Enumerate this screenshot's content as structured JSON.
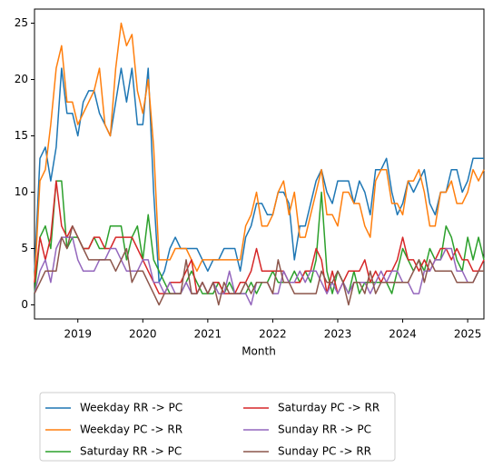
{
  "chart_data": {
    "type": "line",
    "xlabel": "Month",
    "x": [
      2018.333,
      2018.417,
      2018.5,
      2018.583,
      2018.667,
      2018.75,
      2018.833,
      2018.917,
      2019.0,
      2019.083,
      2019.167,
      2019.25,
      2019.333,
      2019.417,
      2019.5,
      2019.583,
      2019.667,
      2019.75,
      2019.833,
      2019.917,
      2020.0,
      2020.083,
      2020.167,
      2020.25,
      2020.333,
      2020.417,
      2020.5,
      2020.583,
      2020.667,
      2020.75,
      2020.833,
      2020.917,
      2021.0,
      2021.083,
      2021.167,
      2021.25,
      2021.333,
      2021.417,
      2021.5,
      2021.583,
      2021.667,
      2021.75,
      2021.833,
      2021.917,
      2022.0,
      2022.083,
      2022.167,
      2022.25,
      2022.333,
      2022.417,
      2022.5,
      2022.583,
      2022.667,
      2022.75,
      2022.833,
      2022.917,
      2023.0,
      2023.083,
      2023.167,
      2023.25,
      2023.333,
      2023.417,
      2023.5,
      2023.583,
      2023.667,
      2023.75,
      2023.833,
      2023.917,
      2024.0,
      2024.083,
      2024.167,
      2024.25,
      2024.333,
      2024.417,
      2024.5,
      2024.583,
      2024.667,
      2024.75,
      2024.833,
      2024.917,
      2025.0,
      2025.083,
      2025.167,
      2025.25
    ],
    "xlim": [
      2018.333,
      2025.25
    ],
    "xticks": [
      2019,
      2020,
      2021,
      2022,
      2023,
      2024,
      2025
    ],
    "ylim": [
      -1.25,
      26.25
    ],
    "yticks": [
      0,
      5,
      10,
      15,
      20,
      25
    ],
    "legend": "below",
    "series": [
      {
        "name": "Weekday RR -> PC",
        "color": "#1f77b4",
        "values": [
          3,
          13,
          14,
          11,
          14,
          21,
          17,
          17,
          15,
          18,
          19,
          19,
          17,
          16,
          15,
          18,
          21,
          18,
          21,
          16,
          16,
          21,
          10,
          2,
          3,
          5,
          6,
          5,
          5,
          5,
          5,
          4,
          3,
          4,
          4,
          5,
          5,
          5,
          3,
          6,
          7,
          9,
          9,
          8,
          8,
          10,
          10,
          9,
          4,
          7,
          7,
          9,
          11,
          12,
          10,
          9,
          11,
          11,
          11,
          9,
          11,
          10,
          8,
          12,
          12,
          13,
          10,
          8,
          9,
          11,
          10,
          11,
          12,
          9,
          8,
          10,
          10,
          12,
          12,
          10,
          11,
          13,
          13,
          13
        ]
      },
      {
        "name": "Weekday PC -> RR",
        "color": "#ff7f0e",
        "values": [
          2,
          11,
          12,
          16,
          21,
          23,
          18,
          18,
          16,
          17,
          18,
          19,
          21,
          16,
          15,
          21,
          25,
          23,
          24,
          19,
          17,
          20,
          14,
          4,
          4,
          4,
          5,
          5,
          5,
          4,
          3,
          4,
          4,
          4,
          4,
          4,
          4,
          4,
          4,
          7,
          8,
          10,
          7,
          7,
          8,
          10,
          11,
          8,
          10,
          6,
          6,
          8,
          10,
          12,
          8,
          8,
          7,
          10,
          10,
          9,
          9,
          7,
          6,
          11,
          12,
          12,
          9,
          9,
          8,
          11,
          11,
          12,
          10,
          7,
          7,
          10,
          10,
          11,
          9,
          9,
          10,
          12,
          11,
          12
        ]
      },
      {
        "name": "Saturday RR -> PC",
        "color": "#2ca02c",
        "values": [
          1,
          6,
          7,
          5,
          11,
          11,
          5,
          6,
          6,
          5,
          5,
          6,
          5,
          5,
          7,
          7,
          7,
          4,
          6,
          7,
          4,
          8,
          4,
          3,
          2,
          1,
          1,
          1,
          2,
          3,
          2,
          1,
          1,
          1,
          2,
          1,
          2,
          1,
          1,
          1,
          2,
          1,
          2,
          2,
          3,
          2,
          2,
          2,
          3,
          2,
          3,
          2,
          4,
          10,
          3,
          1,
          3,
          2,
          1,
          3,
          1,
          2,
          2,
          2,
          2,
          2,
          1,
          3,
          5,
          4,
          3,
          4,
          3,
          5,
          4,
          4,
          7,
          6,
          4,
          3,
          6,
          4,
          6,
          4
        ]
      },
      {
        "name": "Saturday PC -> RR",
        "color": "#d62728",
        "values": [
          2,
          6,
          4,
          6,
          11,
          7,
          6,
          7,
          6,
          5,
          5,
          6,
          6,
          5,
          5,
          6,
          6,
          6,
          6,
          5,
          4,
          3,
          2,
          1,
          1,
          2,
          2,
          2,
          3,
          4,
          1,
          2,
          1,
          2,
          2,
          1,
          1,
          1,
          2,
          2,
          3,
          5,
          3,
          3,
          3,
          3,
          3,
          2,
          2,
          2,
          3,
          3,
          5,
          4,
          1,
          3,
          1,
          2,
          3,
          3,
          3,
          4,
          2,
          3,
          2,
          3,
          3,
          4,
          6,
          4,
          4,
          3,
          4,
          3,
          4,
          5,
          5,
          4,
          5,
          4,
          4,
          3,
          3,
          4
        ]
      },
      {
        "name": "Sunday RR -> PC",
        "color": "#9467bd",
        "values": [
          1,
          3,
          4,
          2,
          5,
          6,
          6,
          6,
          4,
          3,
          3,
          3,
          4,
          4,
          5,
          5,
          4,
          3,
          3,
          3,
          4,
          4,
          2,
          2,
          1,
          2,
          1,
          1,
          2,
          1,
          1,
          2,
          1,
          2,
          1,
          1,
          3,
          1,
          1,
          1,
          0,
          2,
          2,
          2,
          1,
          1,
          3,
          2,
          2,
          3,
          2,
          3,
          3,
          2,
          1,
          2,
          1,
          2,
          1,
          2,
          2,
          2,
          1,
          2,
          3,
          2,
          3,
          3,
          2,
          2,
          1,
          1,
          3,
          3,
          4,
          4,
          5,
          5,
          3,
          3,
          2,
          2,
          3,
          3
        ]
      },
      {
        "name": "Sunday PC -> RR",
        "color": "#8c564b",
        "values": [
          1,
          2,
          3,
          3,
          3,
          6,
          5,
          7,
          6,
          5,
          4,
          4,
          4,
          4,
          4,
          3,
          4,
          5,
          2,
          3,
          3,
          2,
          1,
          0,
          1,
          1,
          1,
          1,
          4,
          1,
          1,
          2,
          1,
          2,
          0,
          2,
          1,
          1,
          1,
          2,
          1,
          2,
          2,
          2,
          1,
          4,
          2,
          2,
          1,
          1,
          1,
          1,
          1,
          3,
          2,
          2,
          3,
          2,
          0,
          2,
          2,
          1,
          3,
          1,
          2,
          2,
          2,
          2,
          2,
          2,
          3,
          4,
          2,
          4,
          3,
          3,
          3,
          3,
          2,
          2,
          2,
          2,
          3,
          3
        ]
      }
    ]
  }
}
